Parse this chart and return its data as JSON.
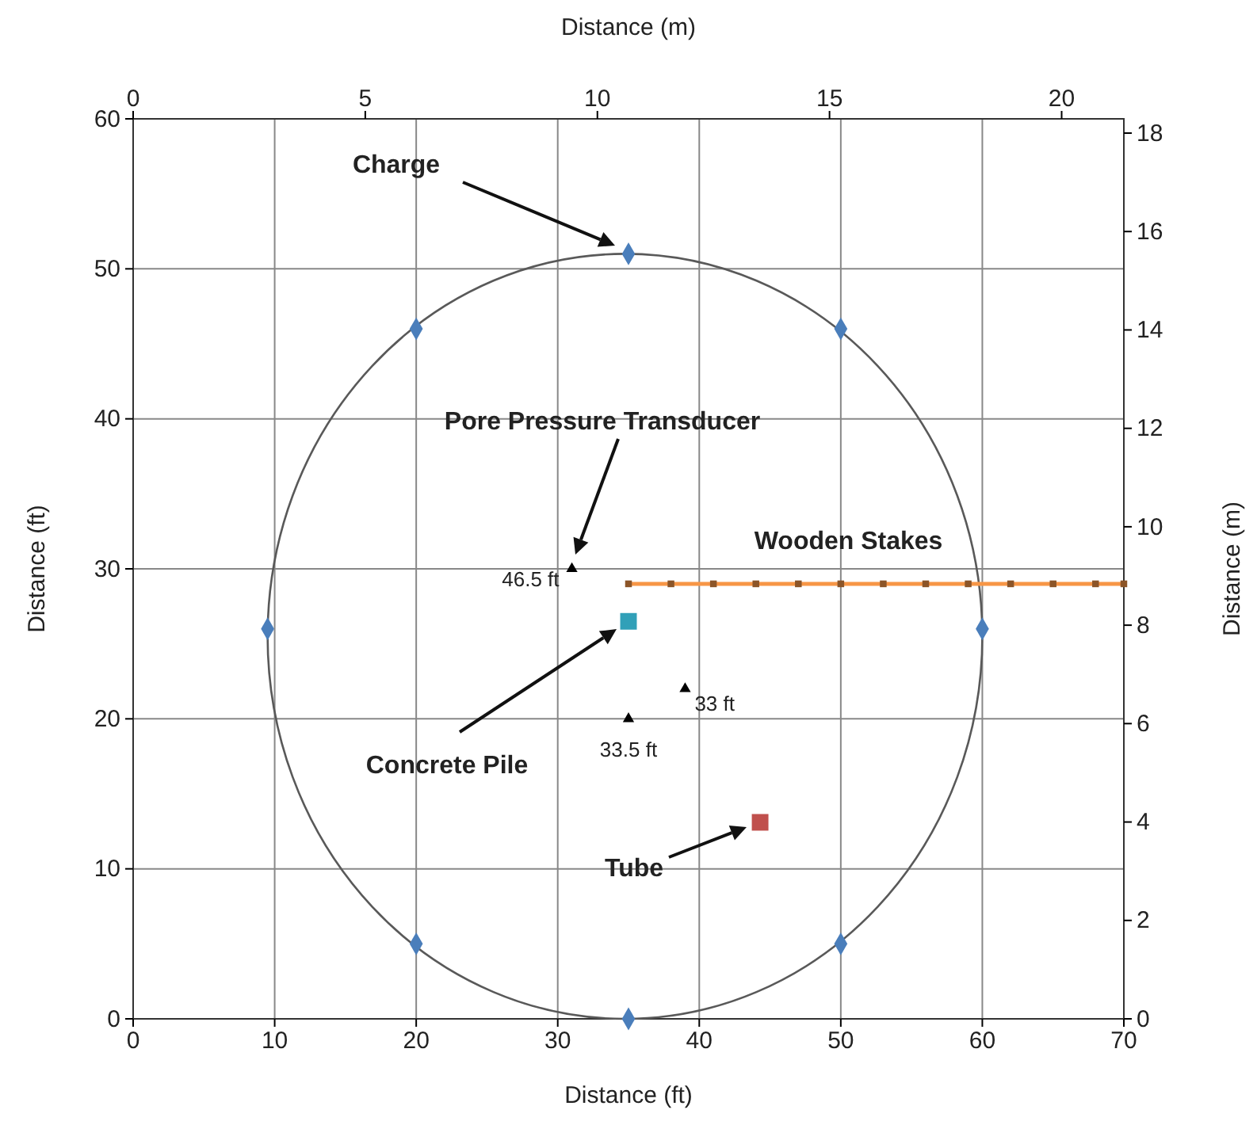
{
  "chart_data": {
    "type": "scatter",
    "xlabel": "Distance (ft)",
    "ylabel": "Distance (ft)",
    "x2label": "Distance (m)",
    "y2label": "Distance (m)",
    "xlim": [
      0,
      70
    ],
    "xticks": [
      0,
      10,
      20,
      30,
      40,
      50,
      60,
      70
    ],
    "ylim": [
      0,
      60
    ],
    "yticks": [
      0,
      10,
      20,
      30,
      40,
      50,
      60
    ],
    "x2lim": [
      0,
      21.34
    ],
    "x2ticks": [
      0,
      5,
      10,
      15,
      20
    ],
    "y2lim": [
      0,
      18.29
    ],
    "y2ticks": [
      0,
      2,
      4,
      6,
      8,
      10,
      12,
      14,
      16,
      18
    ],
    "grid": true,
    "series": [
      {
        "color": "#4a7ebb",
        "marker": "diamond",
        "x": [
          35,
          20,
          50,
          9.5,
          60,
          20,
          50,
          35
        ],
        "values": [
          51,
          46,
          46,
          26,
          26,
          5,
          5,
          0
        ]
      },
      {
        "color": "#000000",
        "marker": "triangle",
        "x": [
          31,
          35,
          39
        ],
        "values": [
          30,
          20,
          22
        ]
      },
      {
        "color": "#31a0b8",
        "marker": "square",
        "x": [
          35
        ],
        "values": [
          26.5
        ]
      },
      {
        "color": "#c0504d",
        "marker": "square",
        "x": [
          44.3
        ],
        "values": [
          13.1
        ]
      },
      {
        "type": "line",
        "color": "#f79646",
        "marker": "square",
        "x": [
          35,
          38,
          41,
          44,
          47,
          50,
          53,
          56,
          59,
          62,
          65,
          68,
          70
        ],
        "values": [
          29,
          29,
          29,
          29,
          29,
          29,
          29,
          29,
          29,
          29,
          29,
          29,
          29
        ]
      }
    ],
    "annotations": [
      "Charge",
      "Pore Pressure Transducer",
      {
        "text": "Wooden Stakes",
        "x": 52,
        "y": 29
      },
      "Concrete Pile",
      "Tube",
      {
        "text": "46.5 ft",
        "x": 31,
        "y": 30
      },
      {
        "text": "33.5 ft",
        "x": 35,
        "y": 20
      },
      {
        "text": "33 ft",
        "x": 39,
        "y": 22
      }
    ]
  }
}
